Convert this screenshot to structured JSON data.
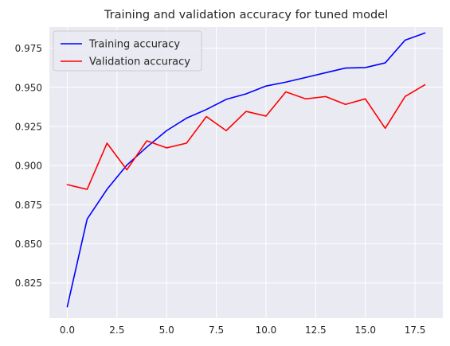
{
  "chart_data": {
    "type": "line",
    "title": "Training and validation accuracy for tuned model",
    "xlabel": "",
    "ylabel": "",
    "xlim": [
      -0.9,
      18.9
    ],
    "ylim": [
      0.8025,
      0.9885
    ],
    "x_ticks": [
      0.0,
      2.5,
      5.0,
      7.5,
      10.0,
      12.5,
      15.0,
      17.5
    ],
    "x_tick_labels": [
      "0.0",
      "2.5",
      "5.0",
      "7.5",
      "10.0",
      "12.5",
      "15.0",
      "17.5"
    ],
    "y_ticks": [
      0.825,
      0.85,
      0.875,
      0.9,
      0.925,
      0.95,
      0.975
    ],
    "y_tick_labels": [
      "0.825",
      "0.850",
      "0.875",
      "0.900",
      "0.925",
      "0.950",
      "0.975"
    ],
    "grid": true,
    "legend_position": "top-left",
    "background": "#eaeaf2",
    "x": [
      0,
      1,
      2,
      3,
      4,
      5,
      6,
      7,
      8,
      9,
      10,
      11,
      12,
      13,
      14,
      15,
      16,
      17,
      18
    ],
    "series": [
      {
        "name": "Training accuracy",
        "color": "#0000ff",
        "values": [
          0.8098,
          0.8658,
          0.8848,
          0.9003,
          0.9118,
          0.9223,
          0.9303,
          0.9358,
          0.9423,
          0.9458,
          0.9508,
          0.9533,
          0.9563,
          0.9593,
          0.9623,
          0.9626,
          0.9656,
          0.9801,
          0.9847
        ]
      },
      {
        "name": "Validation accuracy",
        "color": "#ff0000",
        "values": [
          0.8878,
          0.8848,
          0.9143,
          0.8973,
          0.9158,
          0.9113,
          0.9143,
          0.9313,
          0.9223,
          0.9346,
          0.9316,
          0.9471,
          0.9426,
          0.9441,
          0.9391,
          0.9426,
          0.9238,
          0.9441,
          0.9516
        ]
      }
    ]
  }
}
